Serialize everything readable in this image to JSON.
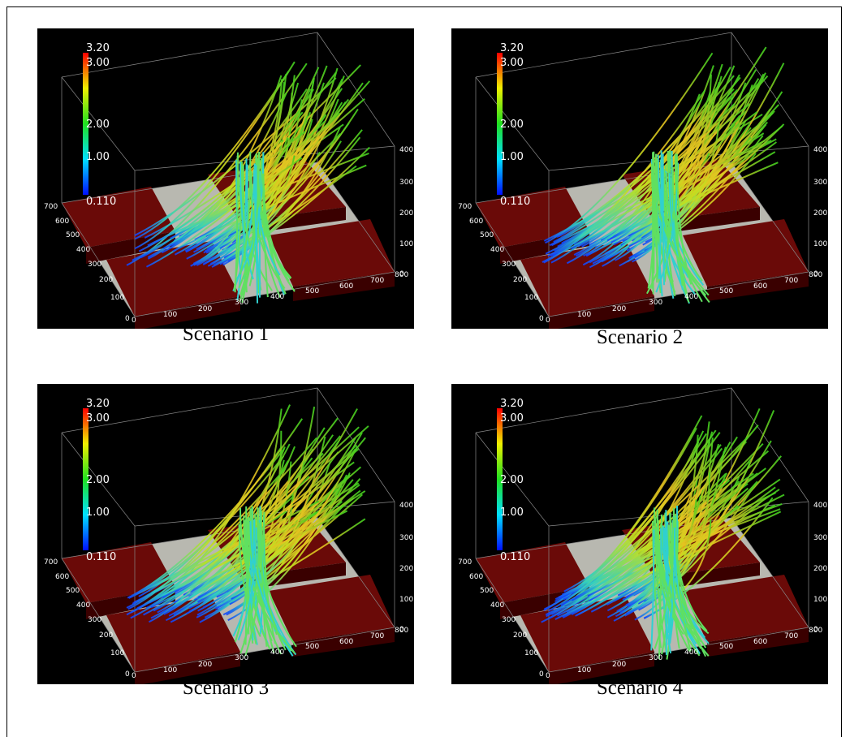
{
  "panels": [
    {
      "caption": "Scenario 1",
      "colorbar": [
        "3.20",
        "3.00",
        "2.00",
        "1.00",
        "0.110"
      ],
      "depth_axis": [
        "700",
        "600",
        "500",
        "400",
        "300",
        "200",
        "100",
        "0"
      ],
      "width_axis": [
        "0",
        "100",
        "200",
        "300",
        "400",
        "500",
        "600",
        "700",
        "800"
      ],
      "height_axis": [
        "400",
        "300",
        "200",
        "100",
        "0"
      ]
    },
    {
      "caption": "Scenario 2",
      "colorbar": [
        "3.20",
        "3.00",
        "2.00",
        "1.00",
        "0.110"
      ],
      "depth_axis": [
        "700",
        "600",
        "500",
        "400",
        "300",
        "200",
        "100",
        "0"
      ],
      "width_axis": [
        "0",
        "100",
        "200",
        "300",
        "400",
        "500",
        "600",
        "700",
        "800"
      ],
      "height_axis": [
        "400",
        "300",
        "200",
        "100",
        "0"
      ]
    },
    {
      "caption": "Scenario 3",
      "colorbar": [
        "3.20",
        "3.00",
        "2.00",
        "1.00",
        "0.110"
      ],
      "depth_axis": [
        "700",
        "600",
        "500",
        "400",
        "300",
        "200",
        "100",
        "0"
      ],
      "width_axis": [
        "0",
        "100",
        "200",
        "300",
        "400",
        "500",
        "600",
        "700",
        "800"
      ],
      "height_axis": [
        "400",
        "300",
        "200",
        "100",
        "0"
      ]
    },
    {
      "caption": "Scenario 4",
      "colorbar": [
        "3.20",
        "3.00",
        "2.00",
        "1.00",
        "0.110"
      ],
      "depth_axis": [
        "700",
        "600",
        "500",
        "400",
        "300",
        "200",
        "100",
        "0"
      ],
      "width_axis": [
        "0",
        "100",
        "200",
        "300",
        "400",
        "500",
        "600",
        "700",
        "800"
      ],
      "height_axis": [
        "400",
        "300",
        "200",
        "100",
        "0"
      ]
    }
  ]
}
